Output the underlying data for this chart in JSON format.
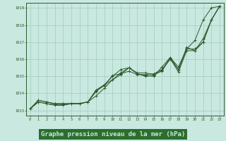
{
  "background_color": "#c8e8e0",
  "plot_bg_color": "#c8e8e0",
  "grid_color": "#a0ccbc",
  "line_color": "#2d5a2d",
  "marker_color": "#2d5a2d",
  "title": "Graphe pression niveau de la mer (hPa)",
  "title_bg": "#2d6e2d",
  "title_fg": "#c8e8e0",
  "title_fontsize": 6.5,
  "xlim": [
    -0.5,
    23.5
  ],
  "ylim": [
    1012.7,
    1019.3
  ],
  "xticks": [
    0,
    1,
    2,
    3,
    4,
    5,
    6,
    7,
    8,
    9,
    10,
    11,
    12,
    13,
    14,
    15,
    16,
    17,
    18,
    19,
    20,
    21,
    22,
    23
  ],
  "yticks": [
    1013,
    1014,
    1015,
    1016,
    1017,
    1018,
    1019
  ],
  "series": [
    {
      "x": [
        0,
        1,
        2,
        3,
        4,
        5,
        6,
        7,
        8,
        9,
        10,
        11,
        12,
        13,
        14,
        15,
        16,
        17,
        18,
        19,
        20,
        21,
        22,
        23
      ],
      "y": [
        1013.1,
        1013.6,
        1013.5,
        1013.4,
        1013.4,
        1013.4,
        1013.4,
        1013.5,
        1014.1,
        1014.5,
        1014.8,
        1015.1,
        1015.5,
        1015.2,
        1015.2,
        1015.1,
        1015.3,
        1016.1,
        1015.4,
        1016.6,
        1017.1,
        1018.3,
        1019.0,
        1019.1
      ]
    },
    {
      "x": [
        0,
        1,
        2,
        3,
        4,
        5,
        6,
        7,
        8,
        9,
        10,
        11,
        12,
        13,
        14,
        15,
        16,
        17,
        18,
        19,
        20,
        21,
        22,
        23
      ],
      "y": [
        1013.1,
        1013.6,
        1013.5,
        1013.4,
        1013.4,
        1013.4,
        1013.4,
        1013.5,
        1014.2,
        1014.5,
        1015.0,
        1015.4,
        1015.5,
        1015.15,
        1015.05,
        1015.0,
        1015.55,
        1016.1,
        1015.55,
        1016.6,
        1016.6,
        1017.0,
        1018.3,
        1019.1
      ]
    },
    {
      "x": [
        0,
        1,
        2,
        3,
        4,
        5,
        6,
        7,
        8,
        9,
        10,
        11,
        12,
        13,
        14,
        15,
        16,
        17,
        18,
        19,
        20,
        21,
        22,
        23
      ],
      "y": [
        1013.1,
        1013.5,
        1013.4,
        1013.3,
        1013.3,
        1013.4,
        1013.4,
        1013.5,
        1014.15,
        1014.45,
        1015.05,
        1015.15,
        1015.3,
        1015.1,
        1015.1,
        1015.15,
        1015.4,
        1016.05,
        1015.25,
        1016.5,
        1016.5,
        1017.0,
        1018.3,
        1019.1
      ]
    },
    {
      "x": [
        0,
        1,
        2,
        3,
        4,
        5,
        6,
        7,
        8,
        9,
        10,
        11,
        12,
        13,
        14,
        15,
        16,
        17,
        18,
        19,
        20,
        21,
        22,
        23
      ],
      "y": [
        1013.1,
        1013.5,
        1013.4,
        1013.35,
        1013.35,
        1013.4,
        1013.4,
        1013.5,
        1013.85,
        1014.3,
        1014.8,
        1015.2,
        1015.5,
        1015.15,
        1015.0,
        1015.05,
        1015.35,
        1016.0,
        1015.4,
        1016.7,
        1016.5,
        1017.2,
        1018.3,
        1019.1
      ]
    }
  ]
}
